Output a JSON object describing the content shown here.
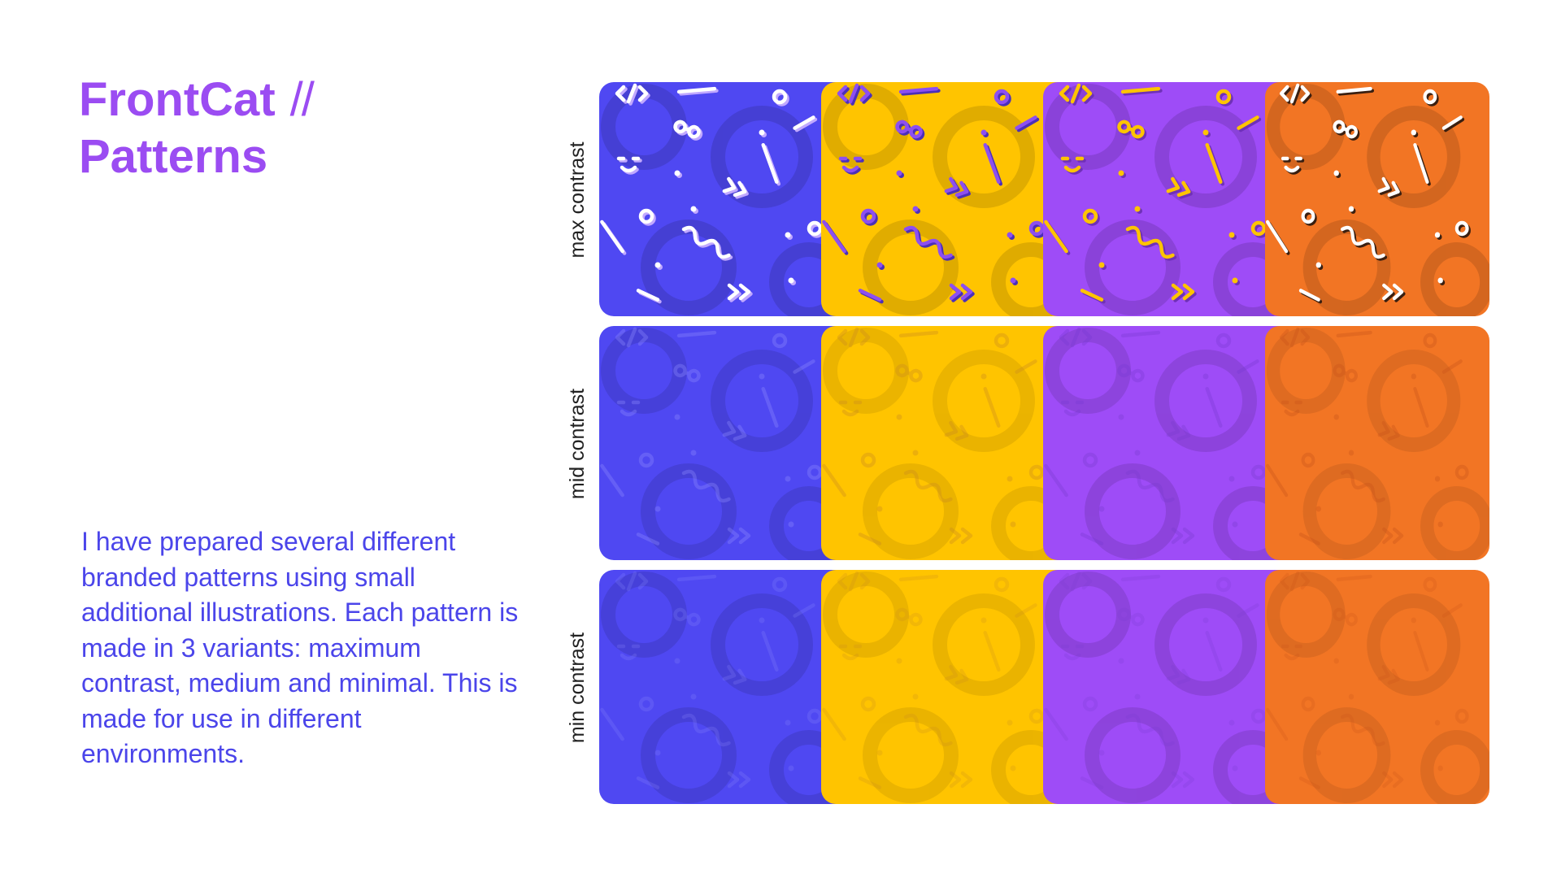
{
  "title": {
    "brand": "FrontCat",
    "separator": "//",
    "subtitle": "Patterns"
  },
  "description": "I have prepared several different branded patterns using small additional illustrations. Each pattern is made in 3 variants: maximum contrast, medium and minimal. This is made for use in different environments.",
  "colors": {
    "title": "#9b4cf2",
    "description": "#4b45ea",
    "blue": "#4f48f2",
    "yellow": "#ffc400",
    "purple": "#9e4cf7",
    "orange": "#f27524"
  },
  "rows": [
    {
      "label": "max contrast",
      "tiles": [
        {
          "color": "blue",
          "icon": "pattern-blue-max"
        },
        {
          "color": "yellow",
          "icon": "pattern-yellow-max"
        },
        {
          "color": "purple",
          "icon": "pattern-purple-max"
        },
        {
          "color": "orange",
          "icon": "pattern-orange-max"
        }
      ]
    },
    {
      "label": "mid contrast",
      "tiles": [
        {
          "color": "blue",
          "icon": "pattern-blue-mid"
        },
        {
          "color": "yellow",
          "icon": "pattern-yellow-mid"
        },
        {
          "color": "purple",
          "icon": "pattern-purple-mid"
        },
        {
          "color": "orange",
          "icon": "pattern-orange-mid"
        }
      ]
    },
    {
      "label": "min contrast",
      "tiles": [
        {
          "color": "blue",
          "icon": "pattern-blue-min"
        },
        {
          "color": "yellow",
          "icon": "pattern-yellow-min"
        },
        {
          "color": "purple",
          "icon": "pattern-purple-min"
        },
        {
          "color": "orange",
          "icon": "pattern-orange-min"
        }
      ]
    }
  ]
}
